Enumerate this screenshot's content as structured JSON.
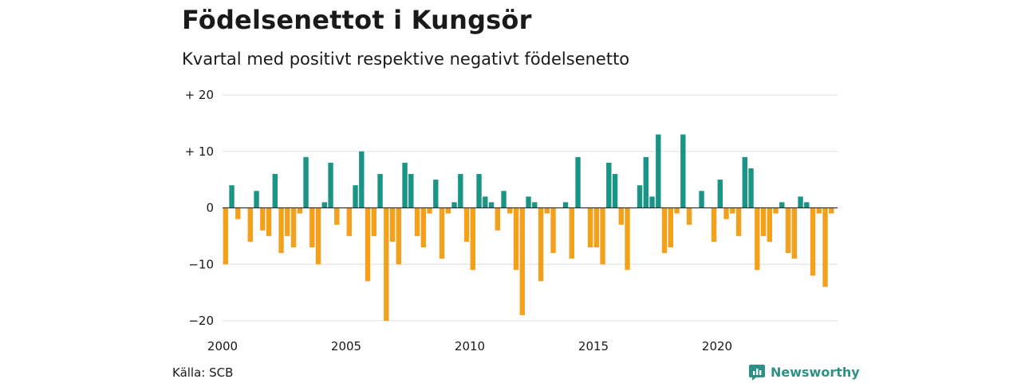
{
  "header": {
    "title": "Födelsenettot i Kungsör",
    "subtitle": "Kvartal med positivt respektive negativt födelsenetto"
  },
  "footer": {
    "source": "Källa: SCB",
    "brand": "Newsworthy"
  },
  "colors": {
    "positive": "#1a9585",
    "negative": "#f5a01a",
    "grid": "#dddddd",
    "zero_line": "#333333",
    "brand": "#2e9185"
  },
  "chart_data": {
    "type": "bar",
    "x_start": 2000,
    "periods_per_year": 4,
    "ylim": [
      -20,
      20
    ],
    "yticks": [
      {
        "value": 20,
        "label": "+ 20"
      },
      {
        "value": 10,
        "label": "+ 10"
      },
      {
        "value": 0,
        "label": "0"
      },
      {
        "value": -10,
        "label": "−10"
      },
      {
        "value": -20,
        "label": "−20"
      }
    ],
    "xticks": [
      "2000",
      "2005",
      "2010",
      "2015",
      "2020"
    ],
    "values": [
      -10,
      4,
      -2,
      0,
      -6,
      3,
      -4,
      -5,
      6,
      -8,
      -5,
      -7,
      -1,
      9,
      -7,
      -10,
      1,
      8,
      -3,
      0,
      -5,
      4,
      10,
      -13,
      -5,
      6,
      -20,
      -6,
      -10,
      8,
      6,
      -5,
      -7,
      -1,
      5,
      -9,
      -1,
      1,
      6,
      -6,
      -11,
      6,
      2,
      1,
      -4,
      3,
      -1,
      -11,
      -19,
      2,
      1,
      -13,
      -1,
      -8,
      0,
      1,
      -9,
      9,
      0,
      -7,
      -7,
      -10,
      8,
      6,
      -3,
      -11,
      0,
      4,
      9,
      2,
      13,
      -8,
      -7,
      -1,
      13,
      -3,
      0,
      3,
      0,
      -6,
      5,
      -2,
      -1,
      -5,
      9,
      7,
      -11,
      -5,
      -6,
      -1,
      1,
      -8,
      -9,
      2,
      1,
      -12,
      -1,
      -14,
      -1
    ]
  }
}
